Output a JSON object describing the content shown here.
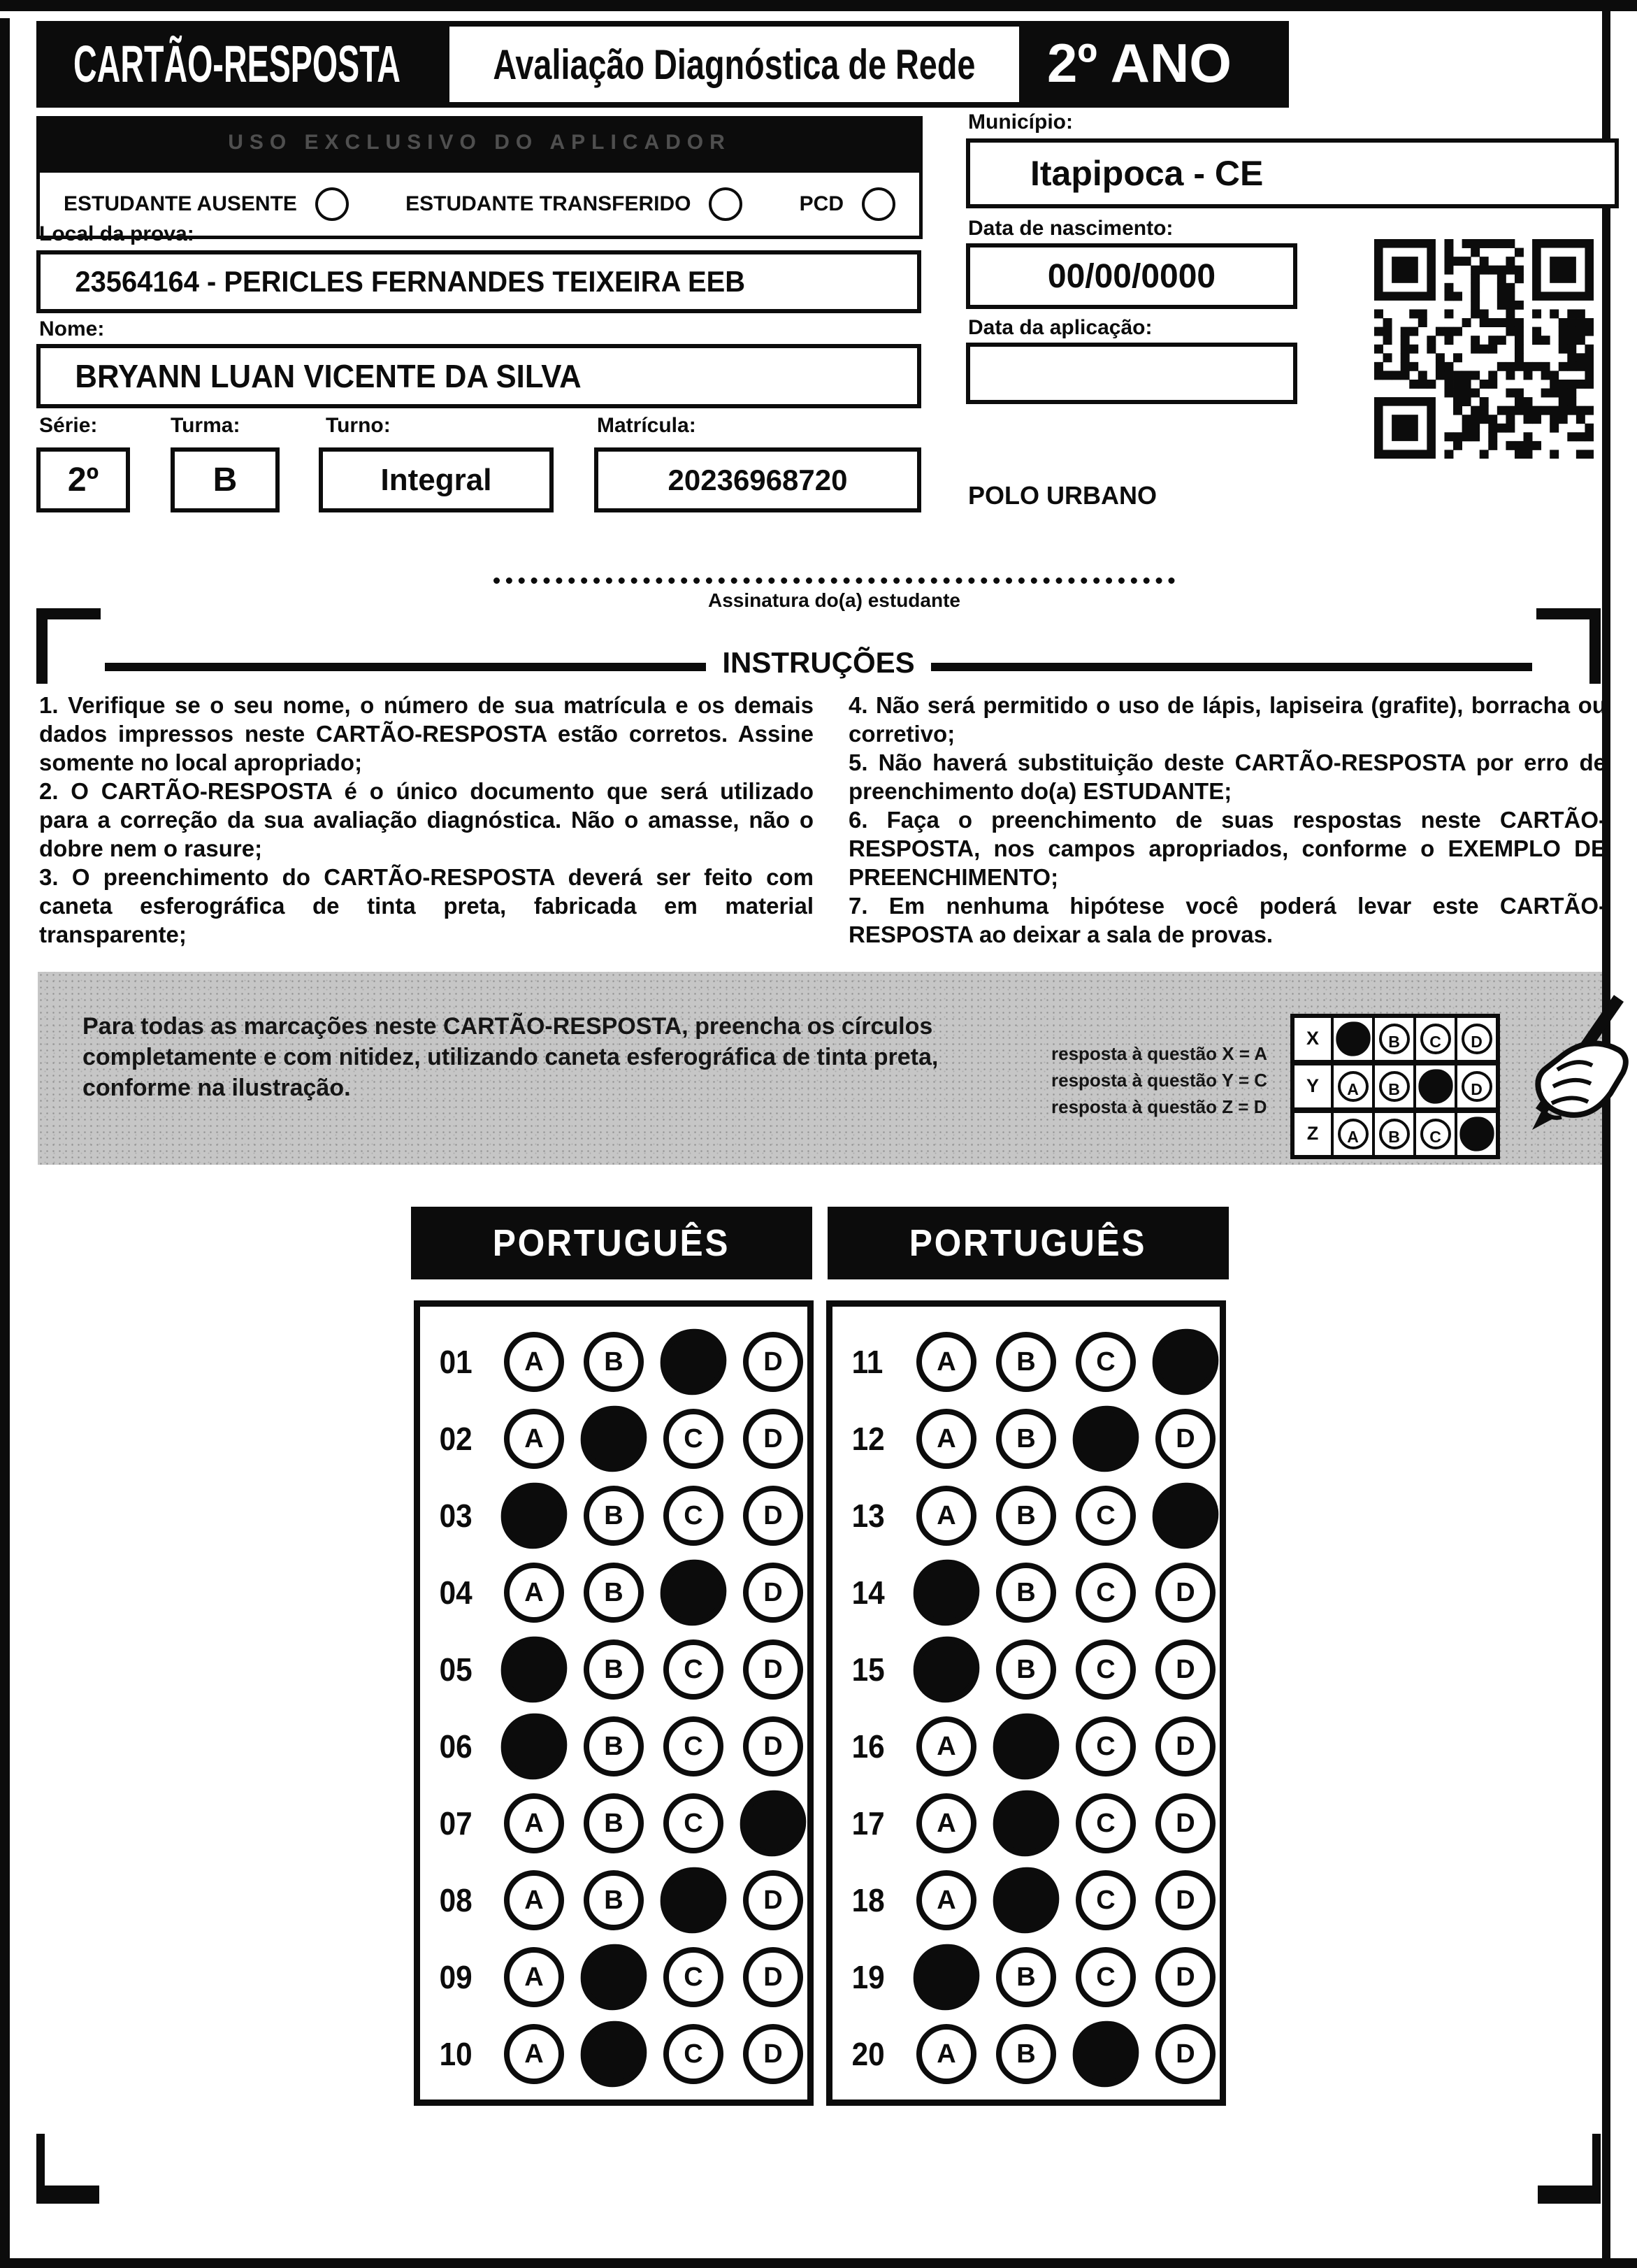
{
  "header": {
    "title": "CARTÃO-RESPOSTA",
    "subtitle": "Avaliação Diagnóstica de Rede",
    "grade": "2º ANO"
  },
  "admin": {
    "bar_label": "USO EXCLUSIVO DO APLICADOR",
    "checkboxes": [
      {
        "label": "ESTUDANTE AUSENTE"
      },
      {
        "label": "ESTUDANTE TRANSFERIDO"
      },
      {
        "label": "PCD"
      }
    ]
  },
  "fields": {
    "local": {
      "label": "Local da prova:",
      "value": "23564164 - PERICLES FERNANDES TEIXEIRA EEB"
    },
    "nome": {
      "label": "Nome:",
      "value": "BRYANN LUAN VICENTE DA SILVA"
    },
    "serie": {
      "label": "Série:",
      "value": "2º"
    },
    "turma": {
      "label": "Turma:",
      "value": "B"
    },
    "turno": {
      "label": "Turno:",
      "value": "Integral"
    },
    "matricula": {
      "label": "Matrícula:",
      "value": "20236968720"
    },
    "municipio": {
      "label": "Município:",
      "value": "Itapipoca - CE"
    },
    "nascimento": {
      "label": "Data de nascimento:",
      "value": "00/00/0000"
    },
    "aplicacao": {
      "label": "Data da aplicação:",
      "value": ""
    },
    "polo": "POLO URBANO"
  },
  "signature": {
    "label": "Assinatura do(a) estudante"
  },
  "instructions": {
    "title": "INSTRUÇÕES",
    "left": [
      "1. Verifique se o seu nome, o número de sua matrícula e os demais dados impressos neste CARTÃO-RESPOSTA estão corretos. Assine somente no local apropriado;",
      "2. O CARTÃO-RESPOSTA é o único documento que será utilizado para a correção da sua avaliação diagnóstica. Não o amasse, não o dobre nem o rasure;",
      "3. O preenchimento do CARTÃO-RESPOSTA deverá ser feito com caneta esferográfica de tinta preta, fabricada em material transparente;"
    ],
    "right": [
      "4. Não será permitido o uso de lápis, lapiseira (grafite), borracha ou corretivo;",
      "5. Não haverá substituição deste CARTÃO-RESPOSTA por erro de preenchimento do(a) ESTUDANTE;",
      "6. Faça o preenchimento de suas respostas neste CARTÃO-RESPOSTA, nos campos apropriados, conforme o EXEMPLO DE PREENCHIMENTO;",
      "7. Em nenhuma hipótese você poderá levar este CARTÃO-RESPOSTA ao deixar a sala de provas."
    ]
  },
  "example": {
    "text": "Para todas as marcações neste CARTÃO-RESPOSTA, preencha os círculos completamente e com nitidez, utilizando caneta esferográfica de tinta preta, conforme na ilustração.",
    "notes": [
      "resposta à questão X = A",
      "resposta à questão Y = C",
      "resposta à questão Z = D"
    ],
    "rows": [
      {
        "label": "X",
        "filled": "A"
      },
      {
        "label": "Y",
        "filled": "C"
      },
      {
        "label": "Z",
        "filled": "D"
      }
    ]
  },
  "options": [
    "A",
    "B",
    "C",
    "D"
  ],
  "answer_sections": [
    {
      "title": "PORTUGUÊS",
      "questions": [
        {
          "num": "01",
          "filled": "C"
        },
        {
          "num": "02",
          "filled": "B"
        },
        {
          "num": "03",
          "filled": "A"
        },
        {
          "num": "04",
          "filled": "C"
        },
        {
          "num": "05",
          "filled": "A"
        },
        {
          "num": "06",
          "filled": "A"
        },
        {
          "num": "07",
          "filled": "D"
        },
        {
          "num": "08",
          "filled": "C"
        },
        {
          "num": "09",
          "filled": "B"
        },
        {
          "num": "10",
          "filled": "B"
        }
      ]
    },
    {
      "title": "PORTUGUÊS",
      "questions": [
        {
          "num": "11",
          "filled": "D"
        },
        {
          "num": "12",
          "filled": "C"
        },
        {
          "num": "13",
          "filled": "D"
        },
        {
          "num": "14",
          "filled": "A"
        },
        {
          "num": "15",
          "filled": "A"
        },
        {
          "num": "16",
          "filled": "B"
        },
        {
          "num": "17",
          "filled": "B"
        },
        {
          "num": "18",
          "filled": "B"
        },
        {
          "num": "19",
          "filled": "A"
        },
        {
          "num": "20",
          "filled": "C"
        }
      ]
    }
  ],
  "colors": {
    "ink": "#0c0c0c",
    "panel_gray": "#c6c6c6"
  }
}
